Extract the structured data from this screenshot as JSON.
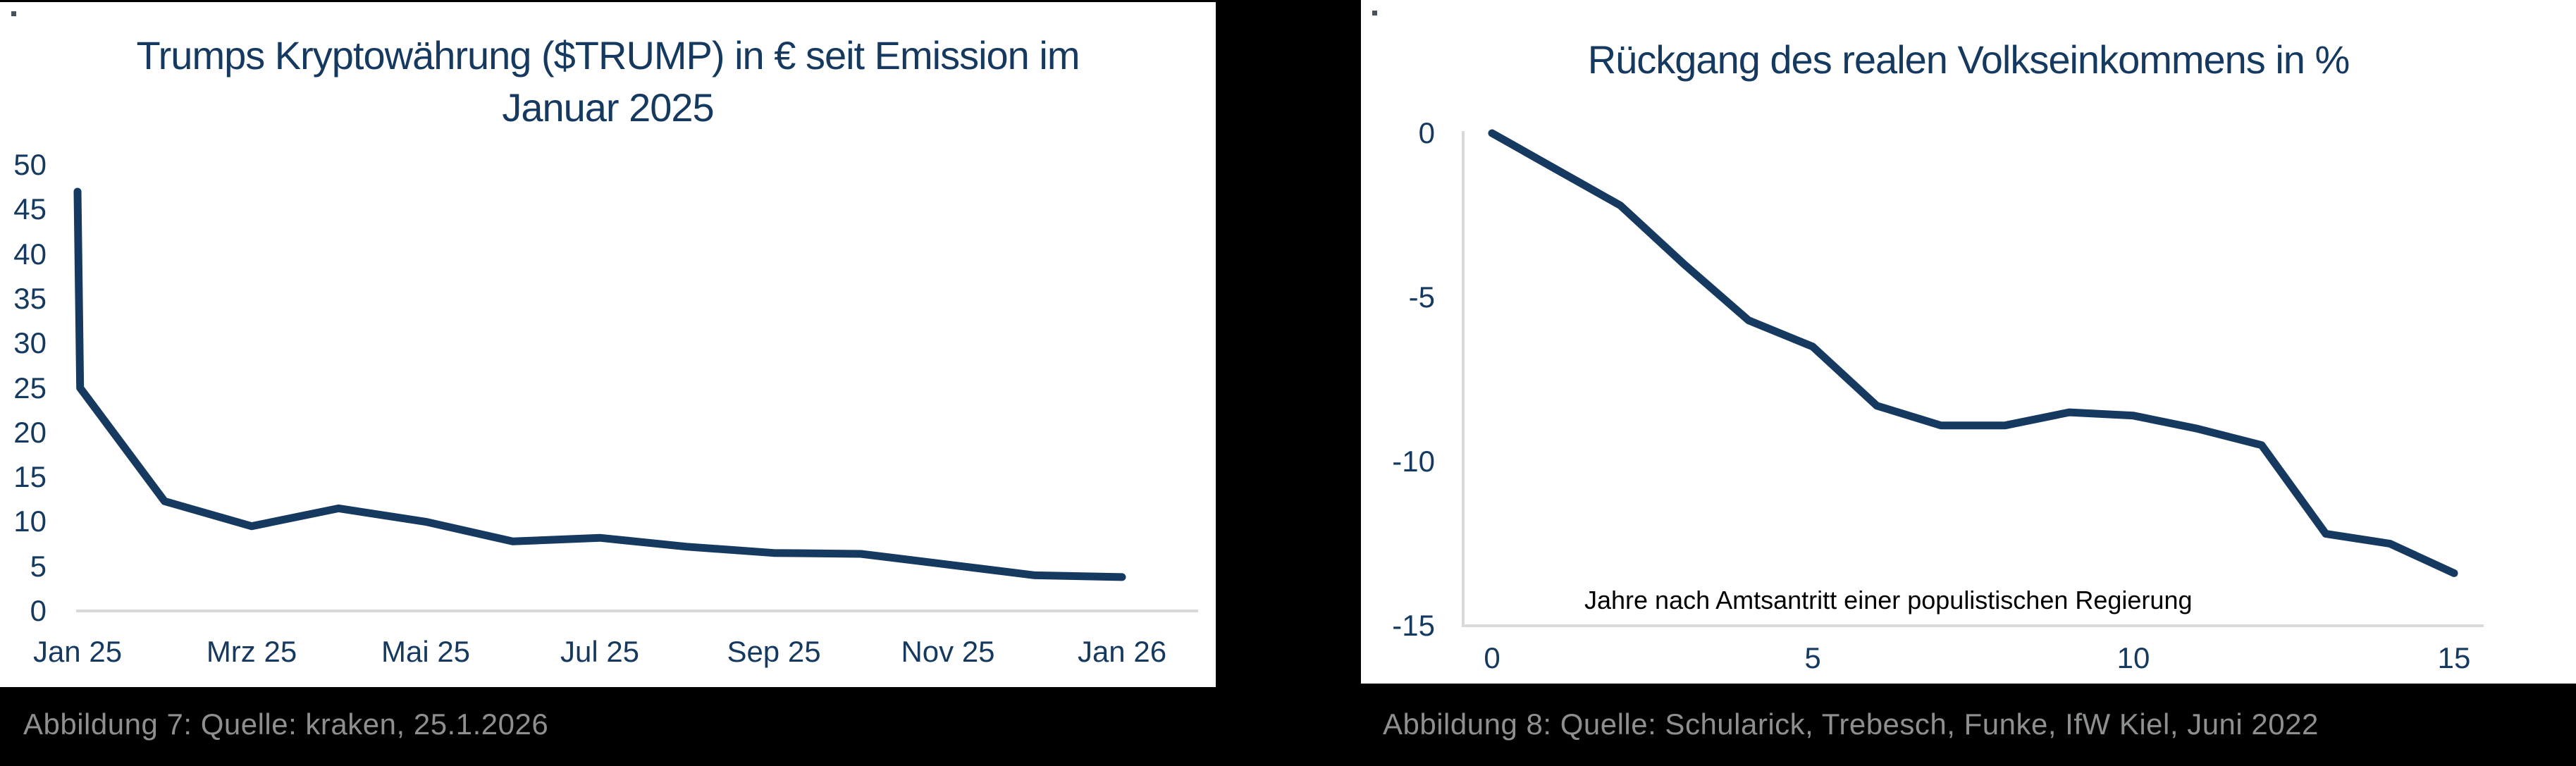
{
  "colors": {
    "background": "#000000",
    "panel": "#ffffff",
    "line_navy": "#15395f",
    "axis_text_navy": "#15395f",
    "grid_gray": "#d9d9d9",
    "caption_gray": "#8e8f90",
    "annotation_black": "#000000",
    "corner_mark_gray": "#46525c"
  },
  "chart_data": [
    {
      "type": "line",
      "title": "Trumps Kryptowährung ($TRUMP) in € seit Emission im Januar 2025",
      "title_lines": [
        "Trumps Kryptowährung ($TRUMP) in € seit Emission im",
        "Januar 2025"
      ],
      "x_unit": "months since Jan 2025",
      "x": [
        0,
        0.03,
        1,
        2,
        3,
        4,
        5,
        6,
        7,
        8,
        9,
        10,
        11,
        12
      ],
      "values": [
        47,
        25,
        12.3,
        9.5,
        11.5,
        10,
        7.8,
        8.2,
        7.2,
        6.5,
        6.4,
        5.2,
        4,
        3.8
      ],
      "x_tick_positions": [
        0,
        2,
        4,
        6,
        8,
        10,
        12
      ],
      "x_tick_labels": [
        "Jan 25",
        "Mrz 25",
        "Mai 25",
        "Jul 25",
        "Sep 25",
        "Nov 25",
        "Jan 26"
      ],
      "y_ticks": [
        50,
        45,
        40,
        35,
        30,
        25,
        20,
        15,
        10,
        5,
        0
      ],
      "ylim": [
        0,
        50
      ],
      "xlim": [
        0,
        12
      ],
      "grid": "zero-line-only",
      "legend": "none",
      "line_color": "#15395f"
    },
    {
      "type": "line",
      "title": "Rückgang des realen Volkseinkommens in %",
      "title_lines": [
        "Rückgang des realen Volkseinkommens in %"
      ],
      "x_unit": "Jahre nach Amtsantritt",
      "x": [
        0,
        1,
        2,
        3,
        4,
        5,
        6,
        7,
        8,
        9,
        10,
        11,
        12,
        13,
        14,
        15
      ],
      "values": [
        0,
        -1.1,
        -2.2,
        -4,
        -5.7,
        -6.5,
        -8.3,
        -8.9,
        -8.9,
        -8.5,
        -8.6,
        -9,
        -9.5,
        -12.2,
        -12.5,
        -13.4
      ],
      "x_tick_positions": [
        0,
        5,
        10,
        15
      ],
      "x_tick_labels": [
        "0",
        "5",
        "10",
        "15"
      ],
      "y_ticks": [
        0,
        -5,
        -10,
        -15
      ],
      "ylim": [
        -15,
        0
      ],
      "xlim": [
        0,
        15
      ],
      "annotation": "Jahre nach Amtsantritt einer populistischen Regierung",
      "grid": "baseline-only",
      "legend": "none",
      "line_color": "#15395f"
    }
  ],
  "captions": {
    "left": "Abbildung 7: Quelle: kraken, 25.1.2026",
    "right": "Abbildung 8: Quelle: Schularick, Trebesch, Funke, IfW Kiel, Juni 2022"
  }
}
